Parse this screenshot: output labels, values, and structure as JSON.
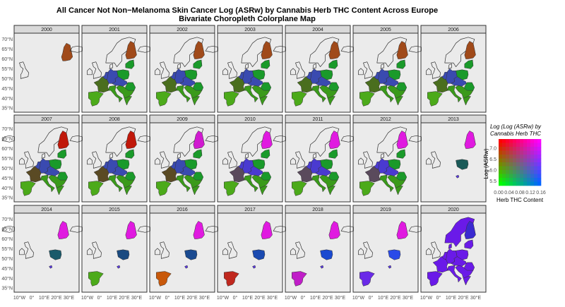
{
  "title": {
    "line1": "All Cancer Not Non−Melanoma Skin Cancer Log (ASRw) by Cannabis Herb THC Content Across Europe",
    "line2": "Bivariate Choropleth Colorplane Map"
  },
  "chart_data": {
    "type": "bivariate choropleth map (small multiples)",
    "facet_label": "year",
    "years": [
      "2000",
      "2001",
      "2002",
      "2003",
      "2004",
      "2005",
      "2006",
      "2007",
      "2008",
      "2009",
      "2010",
      "2011",
      "2012",
      "2013",
      "2014",
      "2015",
      "2016",
      "2017",
      "2018",
      "2019",
      "2020"
    ],
    "y_tick_labels": [
      "70°N",
      "65°N",
      "60°N",
      "55°N",
      "50°N",
      "45°N",
      "40°N",
      "35°N"
    ],
    "x_tick_labels": [
      "10°W",
      "0°",
      "10°E",
      "20°E",
      "30°E"
    ],
    "legend": {
      "title_line1": "Log (Log (ASRw) by",
      "title_line2": "Cannabis Herb THC",
      "x_label": "Herb THC Content",
      "y_label": "Log (ASRw)",
      "x_ticks": [
        "0.00",
        "0.04",
        "0.08",
        "0.12",
        "0.16"
      ],
      "y_ticks": [
        "5.5",
        "6.0",
        "6.5",
        "7.0"
      ],
      "corner_colors": {
        "low_thc_low_asr": "#000000",
        "high_thc_low_asr": "#0000ff",
        "low_thc_high_asr": "#ff0000",
        "high_thc_high_asr": "#ff00ff"
      }
    },
    "map_colors": {
      "france": {
        "2001": "#4a6e1e",
        "2002": "#4a6e1e",
        "2003": "#4a6e1e",
        "2004": "#4a6e1e",
        "2005": "#4a6e1e",
        "2006": "#4a6e1e",
        "2007": "#5a4a24",
        "2008": "#5a4a24",
        "2009": "#5a4a24",
        "2010": "#5a4a5c",
        "2011": "#5a4a5c",
        "2012": "#5a4a5c",
        "2020": "#6a1ae8"
      },
      "spain": {
        "2001": "#4caa1a",
        "2002": "#4caa1a",
        "2003": "#4caa1a",
        "2004": "#4caa1a",
        "2005": "#4caa1a",
        "2006": "#4caa1a",
        "2007": "#4caa1a",
        "2008": "#4caa1a",
        "2009": "#4caa1a",
        "2010": "#4caa1a",
        "2011": "#4caa1a",
        "2012": "#4caa1a",
        "2015": "#4caa1a",
        "2016": "#c8580a",
        "2017": "#c0281e",
        "2018": "#c01ec8",
        "2019": "#6a2ae8",
        "2020": "#6a1ae8"
      },
      "italy": {
        "2001": "#3a9a1a",
        "2002": "#3a9a1a",
        "2003": "#3a9a1a",
        "2004": "#3a9a1a",
        "2005": "#3a9a1a",
        "2006": "#3a9a1a",
        "2007": "#3a9a1a",
        "2008": "#3a9a1a",
        "2009": "#3a9a1a",
        "2010": "#3a9a1a",
        "2011": "#3a9a1a",
        "2012": "#3a9a1a",
        "2020": "#6a1ae8"
      },
      "germany": {
        "2001": "#3a4ab0",
        "2002": "#3a4ab0",
        "2003": "#3a4ab0",
        "2004": "#3a4ab0",
        "2005": "#3a4ab0",
        "2006": "#3a4ab0",
        "2007": "#3a4ab0",
        "2008": "#3a4ab0",
        "2009": "#3a4ab0",
        "2010": "#4a3ad0",
        "2011": "#4a3ad0",
        "2012": "#4a3ad0",
        "2020": "#6a1ae8"
      },
      "poland": {
        "2001": "#1a9a2a",
        "2002": "#1a9a2a",
        "2003": "#1a9a2a",
        "2004": "#1a9a2a",
        "2005": "#1a9a2a",
        "2006": "#1a9a2a",
        "2007": "#1a9a2a",
        "2008": "#1a9a2a",
        "2009": "#1a9a2a",
        "2010": "#1a9a2a",
        "2011": "#1a9a2a",
        "2012": "#1a9a2a",
        "2013": "#1a5a58",
        "2014": "#1a5a6a",
        "2015": "#1a4a80",
        "2016": "#1a4a90",
        "2017": "#1a4ab0",
        "2018": "#1a4ad0",
        "2019": "#2a4ae8",
        "2020": "#6a1ae8"
      },
      "finland": {
        "2000": "#a04a1a",
        "2001": "#a04a1a",
        "2002": "#a04a1a",
        "2003": "#a04a1a",
        "2004": "#a04a1a",
        "2005": "#a04a1a",
        "2006": "#a04a1a",
        "2007": "#c0180a",
        "2008": "#c0180a",
        "2009": "#d01ad0",
        "2010": "#e01ae0",
        "2011": "#e01ae0",
        "2012": "#e01ae0",
        "2013": "#e01ae0",
        "2014": "#e01ae0",
        "2015": "#e01ae0",
        "2016": "#e01ae0",
        "2017": "#e01ae0",
        "2018": "#e01ae0",
        "2019": "#e01ae0",
        "2020": "#3a2ad0"
      },
      "small_country": {
        "2013": "#5a3ae0",
        "2014": "#5a3ae0",
        "2015": "#5a3ae0",
        "2016": "#5a3ae0",
        "2017": "#5a3ae0",
        "2018": "#5a3ae0",
        "2019": "#5a3ae0"
      }
    }
  }
}
